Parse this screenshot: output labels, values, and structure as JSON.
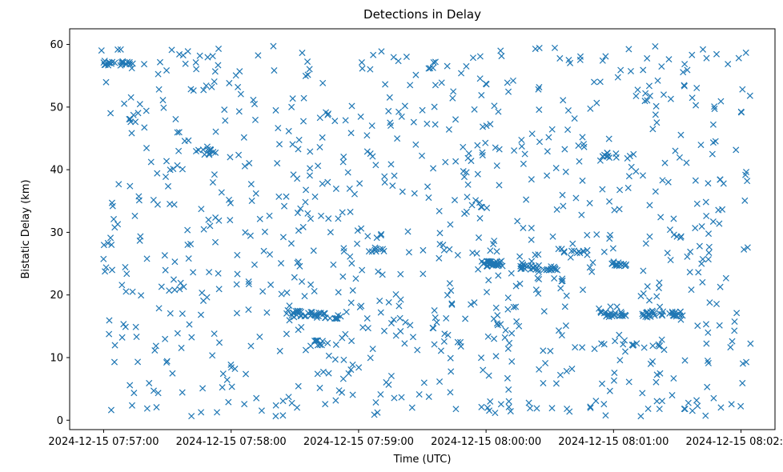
{
  "chart_data": {
    "type": "scatter",
    "title": "Detections in Delay",
    "xlabel": "Time (UTC)",
    "ylabel": "Bistatic Delay (km)",
    "marker": "x",
    "color": "#1f77b4",
    "grid": false,
    "x_axis": {
      "unit": "seconds since 2024-12-15 07:57:00",
      "range": [
        -16,
        316
      ],
      "ticks": [
        {
          "value": 0,
          "label": "2024-12-15 07:57:00"
        },
        {
          "value": 60,
          "label": "2024-12-15 07:58:00"
        },
        {
          "value": 120,
          "label": "2024-12-15 07:59:00"
        },
        {
          "value": 180,
          "label": "2024-12-15 08:00:00"
        },
        {
          "value": 240,
          "label": "2024-12-15 08:01:00"
        },
        {
          "value": 300,
          "label": "2024-12-15 08:02:00"
        }
      ]
    },
    "y_axis": {
      "range": [
        -1.5,
        62.5
      ],
      "ticks": [
        {
          "value": 0,
          "label": "0"
        },
        {
          "value": 10,
          "label": "10"
        },
        {
          "value": 20,
          "label": "20"
        },
        {
          "value": 30,
          "label": "30"
        },
        {
          "value": 40,
          "label": "40"
        },
        {
          "value": 50,
          "label": "50"
        },
        {
          "value": 60,
          "label": "60"
        }
      ]
    },
    "clusters": [
      {
        "x": [
          86,
          112
        ],
        "y": 17.2,
        "slope": -0.03,
        "count": 40
      },
      {
        "x": [
          178,
          188
        ],
        "y": 25.0,
        "slope": 0.0,
        "count": 30
      },
      {
        "x": [
          195,
          214
        ],
        "y": 24.5,
        "slope": -0.02,
        "count": 30
      },
      {
        "x": [
          239,
          246
        ],
        "y": 25.0,
        "slope": 0.0,
        "count": 16
      },
      {
        "x": [
          233,
          246
        ],
        "y": 16.9,
        "slope": 0.0,
        "count": 22
      },
      {
        "x": [
          253,
          272
        ],
        "y": 16.8,
        "slope": 0.01,
        "count": 30
      },
      {
        "x": [
          216,
          228
        ],
        "y": 26.8,
        "slope": 0.0,
        "count": 10
      },
      {
        "x": [
          122,
          132
        ],
        "y": 27.2,
        "slope": 0.0,
        "count": 8
      },
      {
        "x": [
          96,
          104
        ],
        "y": 12.3,
        "slope": 0.0,
        "count": 8
      },
      {
        "x": [
          234,
          270
        ],
        "y": 12.3,
        "slope": 0.0,
        "count": 12
      },
      {
        "x": [
          0,
          14
        ],
        "y": 57.0,
        "slope": 0.0,
        "count": 20
      },
      {
        "x": [
          234,
          242
        ],
        "y": 42.3,
        "slope": 0.0,
        "count": 10
      },
      {
        "x": [
          44,
          55
        ],
        "y": 42.8,
        "slope": 0.0,
        "count": 10
      }
    ],
    "background": {
      "count": 900,
      "x_range": [
        -2,
        305
      ],
      "y_range": [
        0.5,
        59.8
      ],
      "seed": 20241215
    }
  }
}
